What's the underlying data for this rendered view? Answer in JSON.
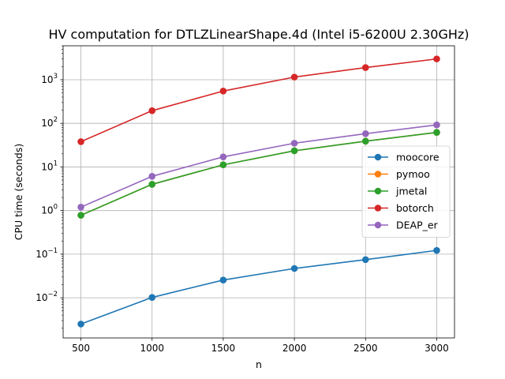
{
  "chart_data": {
    "type": "line",
    "title": "HV computation for DTLZLinearShape.4d (Intel i5-6200U 2.30GHz)",
    "xlabel": "n",
    "ylabel": "CPU time (seconds)",
    "yscale": "log",
    "grid": true,
    "legend_position": "right",
    "x": [
      500,
      1000,
      1500,
      2000,
      2500,
      3000
    ],
    "xlim": [
      375,
      3125
    ],
    "ylim": [
      0.0012,
      6000
    ],
    "x_ticks": [
      500,
      1000,
      1500,
      2000,
      2500,
      3000
    ],
    "x_tick_labels": [
      "500",
      "1000",
      "1500",
      "2000",
      "2500",
      "3000"
    ],
    "y_ticks": [
      0.01,
      0.1,
      1,
      10,
      100,
      1000
    ],
    "y_tick_labels": [
      {
        "base": "10",
        "exp": "−2"
      },
      {
        "base": "10",
        "exp": "−1"
      },
      {
        "base": "10",
        "exp": "0"
      },
      {
        "base": "10",
        "exp": "1"
      },
      {
        "base": "10",
        "exp": "2"
      },
      {
        "base": "10",
        "exp": "3"
      }
    ],
    "series": [
      {
        "name": "moocore",
        "color": "#1f77b4",
        "values": [
          0.0025,
          0.0102,
          0.0255,
          0.047,
          0.075,
          0.122
        ]
      },
      {
        "name": "pymoo",
        "color": "#ff7f0e",
        "values": [
          0.78,
          4.0,
          11.2,
          23.5,
          39.0,
          62.0
        ]
      },
      {
        "name": "jmetal",
        "color": "#2ca02c",
        "values": [
          0.78,
          4.0,
          11.2,
          23.5,
          39.0,
          62.0
        ]
      },
      {
        "name": "botorch",
        "color": "#d62728",
        "values": [
          38,
          195,
          550,
          1150,
          1900,
          3000
        ]
      },
      {
        "name": "DEAP_er",
        "color": "#9467bd",
        "values": [
          1.2,
          6.1,
          17.0,
          35.0,
          58.0,
          92.0
        ]
      }
    ]
  }
}
